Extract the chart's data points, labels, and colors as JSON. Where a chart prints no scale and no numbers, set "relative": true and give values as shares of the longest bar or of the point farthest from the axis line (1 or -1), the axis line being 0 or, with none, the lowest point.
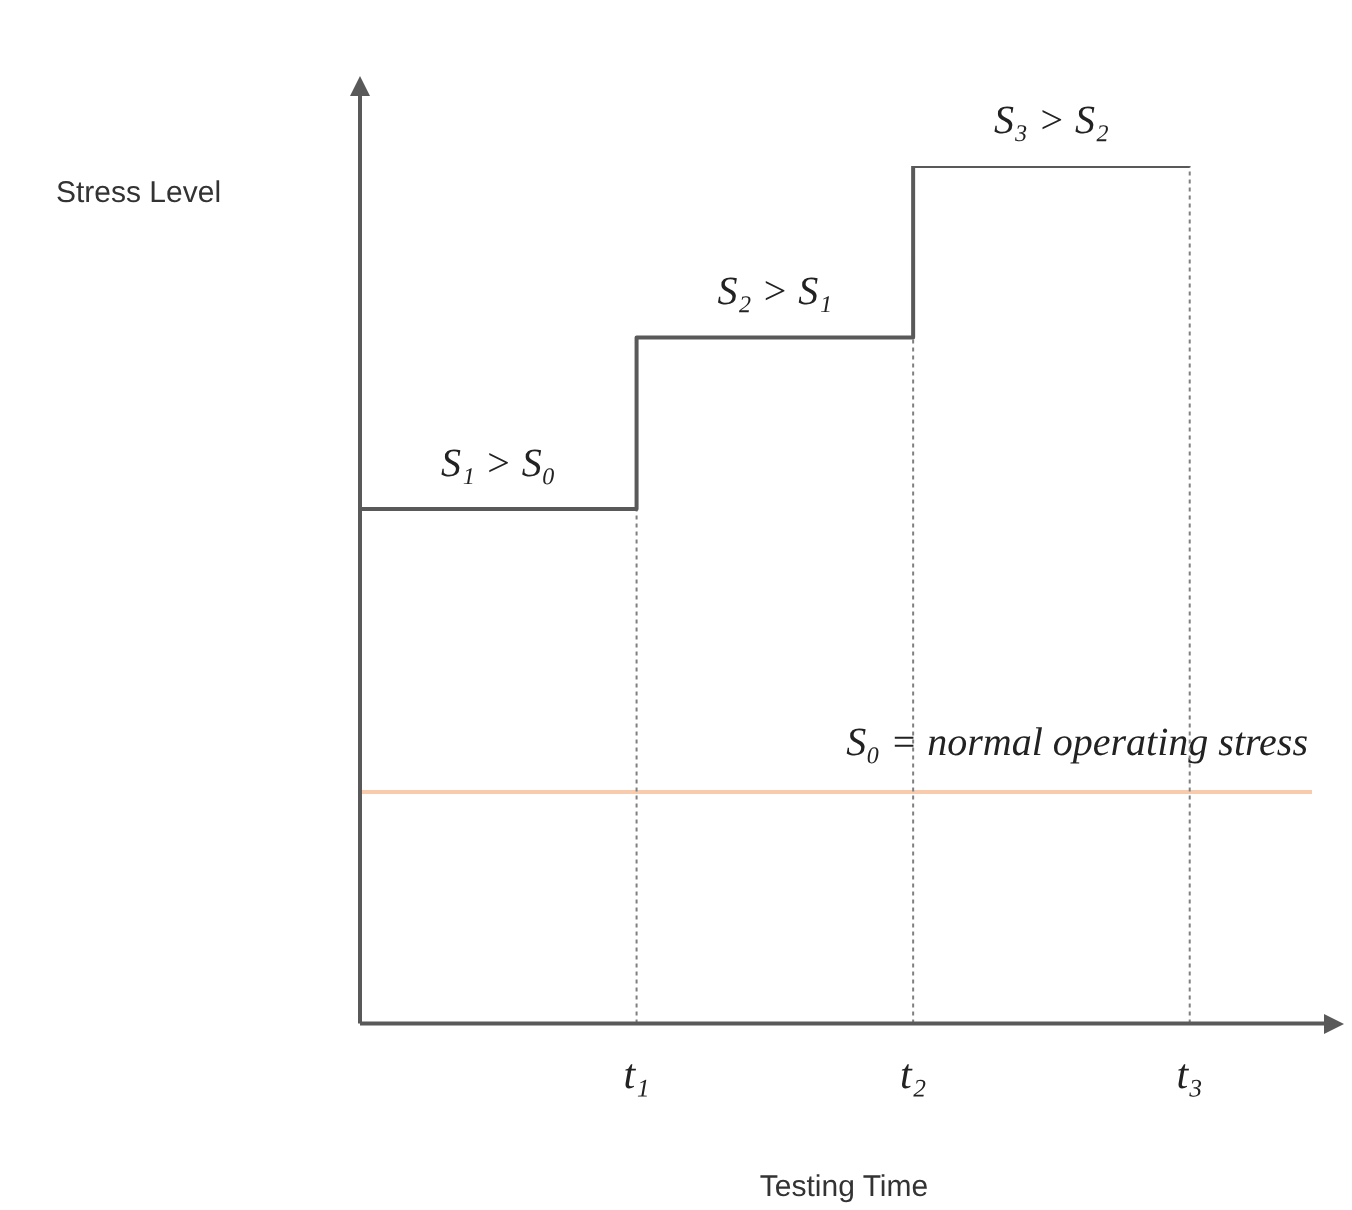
{
  "chart_data": {
    "type": "step",
    "relative": true,
    "xlabel": "Testing Time",
    "ylabel": "Stress Level",
    "categories": [
      null,
      "t₁",
      "t₂",
      "t₃"
    ],
    "series": [
      {
        "color": "#595959",
        "values": [
          0.6,
          0.8,
          1,
          1
        ]
      }
    ],
    "grid": false,
    "legend": false,
    "marker": "none",
    "line_style": "solid",
    "ref_lines": [
      {
        "axis": "y",
        "value": 0.27,
        "label": "S₀ = normal operating stress",
        "color": "#f8cbad",
        "line_style": "solid"
      },
      {
        "axis": "x",
        "value": "t₁",
        "color": "#808080",
        "line_style": "dotted"
      },
      {
        "axis": "x",
        "value": "t₂",
        "color": "#808080",
        "line_style": "dotted"
      },
      {
        "axis": "x",
        "value": "t₃",
        "color": "#808080",
        "line_style": "dotted"
      }
    ],
    "annotations": [
      {
        "text": "S₁ > S₀",
        "x": "t₁",
        "y": 0.6
      },
      {
        "text": "S₂ > S₁",
        "x": "t₂",
        "y": 0.8
      },
      {
        "text": "S₃ > S₂",
        "x": "t₃",
        "y": 1
      }
    ]
  }
}
